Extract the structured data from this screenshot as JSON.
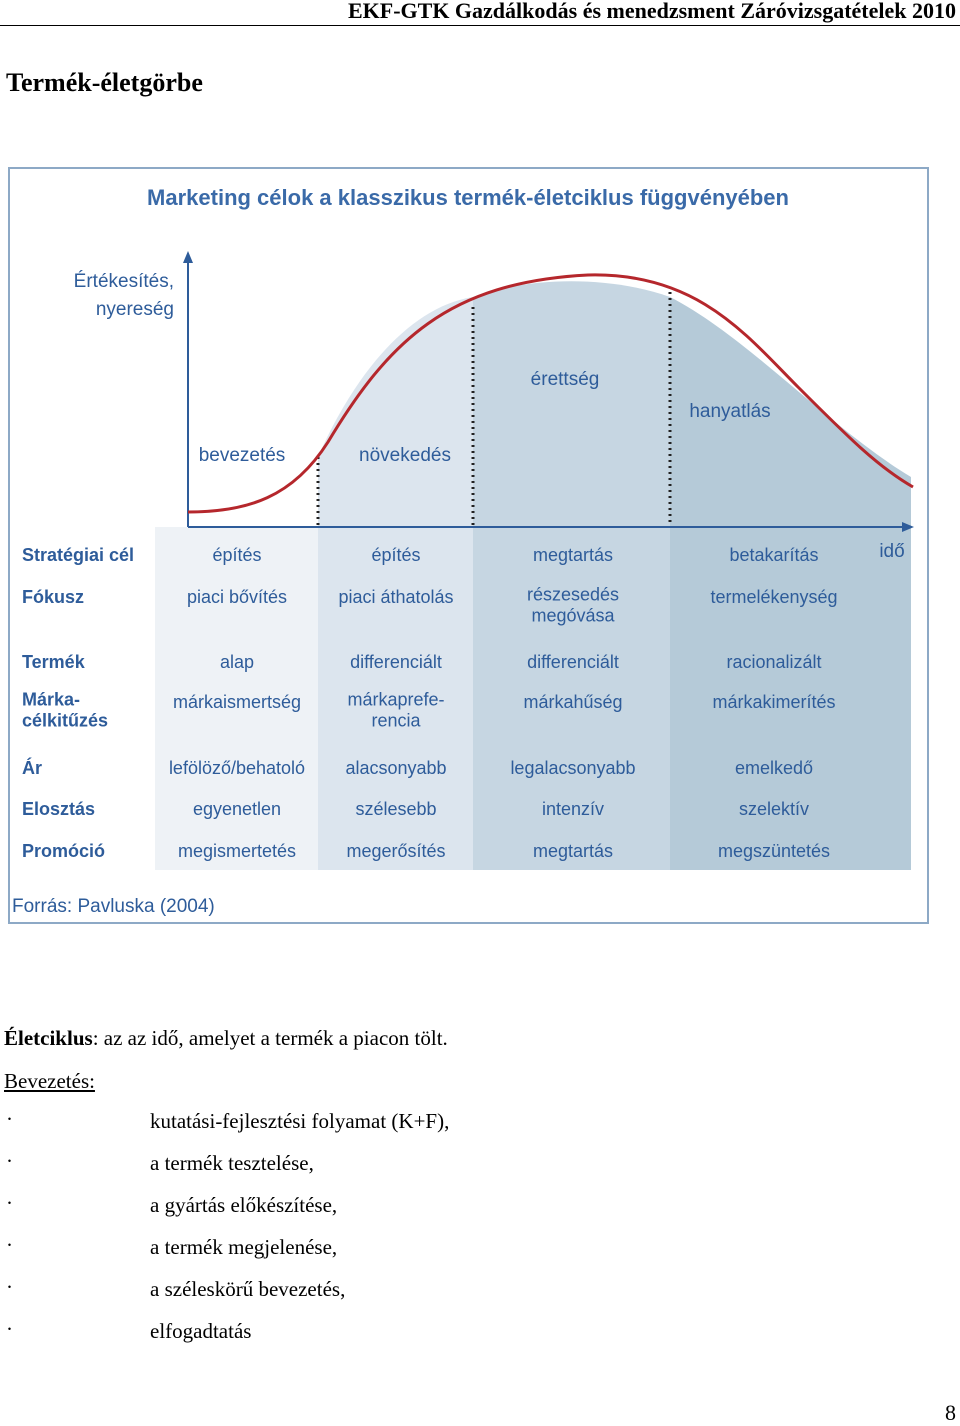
{
  "header": {
    "text": "EKF-GTK Gazdálkodás és menedzsment Záróvizsgatételek 2010"
  },
  "page_title": "Termék-életgörbe",
  "figure": {
    "title": "Marketing célok a klasszikus termék-életciklus függvényében",
    "y_axis_label_line1": "Értékesítés,",
    "y_axis_label_line2": "nyereség",
    "x_axis_label": "idő",
    "phases": [
      "bevezetés",
      "növekedés",
      "érettség",
      "hanyatlás"
    ],
    "row_labels": [
      [
        "Stratégiai cél"
      ],
      [
        "Fókusz"
      ],
      [
        "Termék"
      ],
      [
        "Márka-",
        "célkitűzés"
      ],
      [
        "Ár"
      ],
      [
        "Elosztás"
      ],
      [
        "Promóció"
      ]
    ],
    "columns": [
      [
        [
          "építés"
        ],
        [
          "piaci bővítés"
        ],
        [
          "alap"
        ],
        [
          "márkaismertség"
        ],
        [
          "lefölöző/behatoló"
        ],
        [
          "egyenetlen"
        ],
        [
          "megismertetés"
        ]
      ],
      [
        [
          "építés"
        ],
        [
          "piaci áthatolás"
        ],
        [
          "differenciált"
        ],
        [
          "márkaprefe-",
          "rencia"
        ],
        [
          "alacsonyabb"
        ],
        [
          "szélesebb"
        ],
        [
          "megerősítés"
        ]
      ],
      [
        [
          "megtartás"
        ],
        [
          "részesedés",
          "megóvása"
        ],
        [
          "differenciált"
        ],
        [
          "márkahűség"
        ],
        [
          "legalacsonyabb"
        ],
        [
          "intenzív"
        ],
        [
          "megtartás"
        ]
      ],
      [
        [
          "betakarítás"
        ],
        [
          "termelékenység"
        ],
        [
          "racionalizált"
        ],
        [
          "márkakimerítés"
        ],
        [
          "emelkedő"
        ],
        [
          "szelektív"
        ],
        [
          "megszüntetés"
        ]
      ]
    ],
    "source": "Forrás: Pavluska (2004)",
    "colors": {
      "title": "#3a6aa8",
      "text": "#2e5c9a",
      "curve": "#b5272c",
      "border": "#8da9c6",
      "col1": "#eef2f6",
      "col2": "#dce5ee",
      "col3": "#c6d6e2",
      "col4": "#b5cad8"
    }
  },
  "intro": {
    "term": "Életciklus",
    "text": ": az az idő, amelyet a termék a piacon tölt."
  },
  "subheading": "Bevezetés:",
  "bullet_char": "·",
  "bullets": [
    "kutatási-fejlesztési folyamat (K+F),",
    "a termék tesztelése,",
    "a gyártás előkészítése,",
    "a termék megjelenése,",
    "a széleskörű bevezetés,",
    "elfogadtatás"
  ],
  "page_number": "8"
}
